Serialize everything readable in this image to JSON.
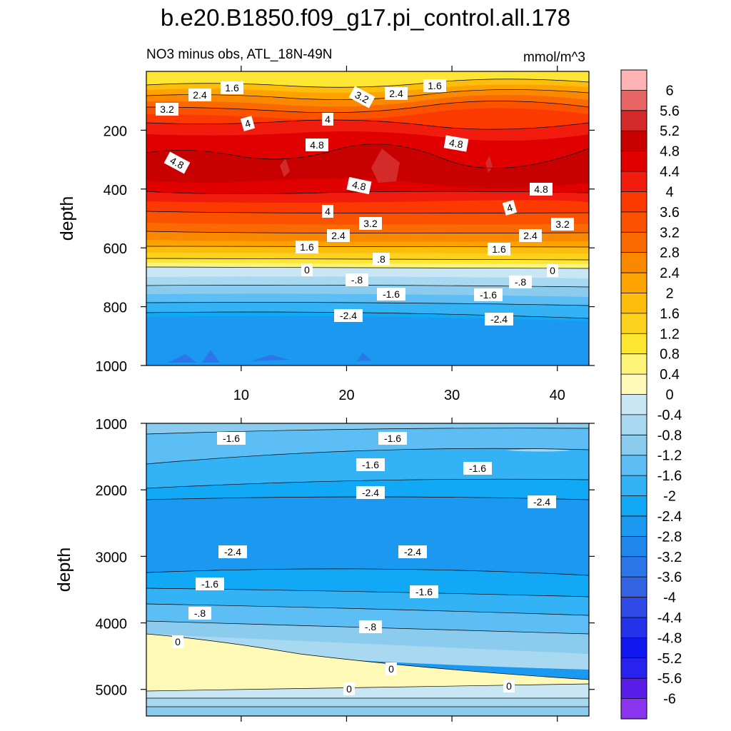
{
  "chart_data": {
    "type": "contour",
    "title": "b.e20.B1850.f09_g17.pi_control.all.178",
    "subtitle_left": "NO3 minus obs, ATL_18N-49N",
    "units": "mmol/m^3",
    "ylabel": "depth",
    "x_ticks": [
      "10",
      "20",
      "30",
      "40"
    ],
    "x_range": [
      1,
      43
    ],
    "colorbar": {
      "levels": [
        "6",
        "5.6",
        "5.2",
        "4.8",
        "4.4",
        "4",
        "3.6",
        "3.2",
        "2.8",
        "2.4",
        "2",
        "1.6",
        "1.2",
        "0.8",
        "0.4",
        "0",
        "-0.4",
        "-0.8",
        "-1.2",
        "-1.6",
        "-2",
        "-2.4",
        "-2.8",
        "-3.2",
        "-3.6",
        "-4",
        "-4.4",
        "-4.8",
        "-5.2",
        "-5.6",
        "-6"
      ],
      "colors": [
        "#ffb3b3",
        "#e86565",
        "#d42a2a",
        "#c80000",
        "#e00000",
        "#f21c0e",
        "#fc3a00",
        "#fb5200",
        "#fb6a00",
        "#fb8900",
        "#fea200",
        "#fdbd0c",
        "#fdd21c",
        "#fee633",
        "#fef47a",
        "#fff9b8",
        "#c8e6f4",
        "#a9d9f0",
        "#8bcbee",
        "#5dbdf5",
        "#33b2f5",
        "#11a8f5",
        "#1b98f0",
        "#1f87ec",
        "#2b76e8",
        "#3564e3",
        "#2f4ae6",
        "#2333ea",
        "#1017ee",
        "#2822ef",
        "#5a1ee8",
        "#8b36ee"
      ]
    },
    "panels": [
      {
        "name": "upper",
        "y_range": [
          0,
          1000
        ],
        "y_ticks": [
          "200",
          "400",
          "600",
          "800",
          "1000"
        ],
        "contour_labels": [
          "2.4",
          "1.6",
          "3.2",
          "3.2",
          "2.4",
          "1.6",
          "4",
          "4",
          "4.8",
          "4.8",
          "4.8",
          "4.8",
          "4.8",
          "4",
          "4",
          "3.2",
          "3.2",
          "2.4",
          "2.4",
          "1.6",
          "1.6",
          ".8",
          "0",
          "0",
          "-.8",
          "-.8",
          "-1.6",
          "-1.6",
          "-2.4",
          "-2.4"
        ]
      },
      {
        "name": "lower",
        "y_range": [
          1000,
          5400
        ],
        "y_ticks": [
          "1000",
          "2000",
          "3000",
          "4000",
          "5000"
        ],
        "contour_labels": [
          "-1.6",
          "-1.6",
          "-1.6",
          "-1.6",
          "-2.4",
          "-2.4",
          "-2.4",
          "-2.4",
          "-1.6",
          "-1.6",
          "-.8",
          "-.8",
          "0",
          "0",
          "0",
          "0"
        ]
      }
    ]
  }
}
